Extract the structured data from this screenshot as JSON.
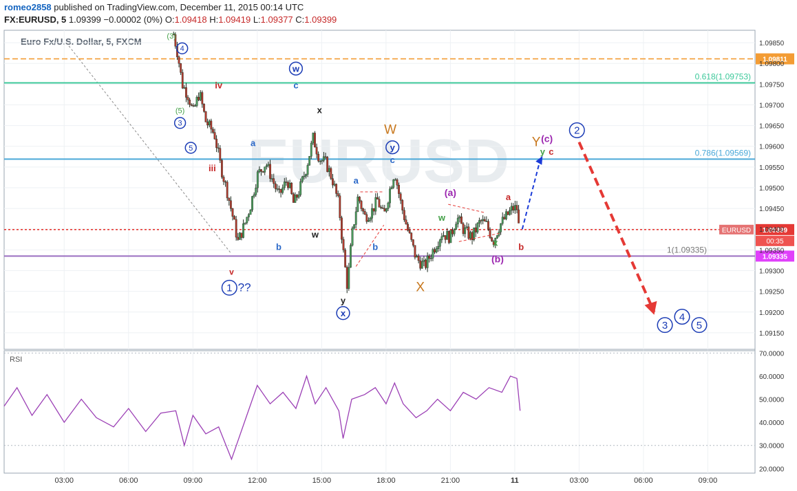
{
  "header": {
    "user": "romeo2858",
    "published": "published on TradingView.com, December 11, 2015 00:14 UTC",
    "symbol": "FX:EURUSD, 5",
    "last": "1.09399",
    "change": "−0.00002 (0%)",
    "o_label": "O:",
    "o": "1.09418",
    "h_label": "H:",
    "h": "1.09419",
    "l_label": "L:",
    "l": "1.09377",
    "c_label": "C:",
    "c": "1.09399"
  },
  "colors": {
    "up": "#4a9a5c",
    "down": "#b23a2e",
    "bg": "#ffffff",
    "rsi": "#9b3fb5",
    "orange": "#f39c34",
    "teal": "#3cc89a",
    "lightblue": "#4aa8d8",
    "purple": "#9a6ec0",
    "red": "#e53935",
    "blue": "#1a3bb5"
  },
  "chart_data": {
    "type": "candlestick",
    "title": "Euro Fx/U.S. Dollar, 5, FXCM",
    "ylim": [
      1.0911,
      1.0988
    ],
    "y_ticks": [
      "1.09850",
      "1.09800",
      "1.09750",
      "1.09700",
      "1.09650",
      "1.09600",
      "1.09550",
      "1.09500",
      "1.09450",
      "1.09400",
      "1.09350",
      "1.09300",
      "1.09250",
      "1.09200",
      "1.09150"
    ],
    "y_tick_values": [
      1.0985,
      1.098,
      1.0975,
      1.097,
      1.0965,
      1.096,
      1.0955,
      1.095,
      1.0945,
      1.094,
      1.0935,
      1.093,
      1.0925,
      1.092,
      1.0915
    ],
    "x_ticks": [
      "03:00",
      "06:00",
      "09:00",
      "12:00",
      "15:00",
      "18:00",
      "21:00",
      "11",
      "03:00",
      "06:00",
      "09:00"
    ],
    "x_tick_hours": [
      3,
      6,
      9,
      12,
      15,
      18,
      21,
      24,
      27,
      30,
      33
    ],
    "xlim_hours": [
      0.2,
      35.2
    ],
    "path": [
      [
        8.1,
        1.0987
      ],
      [
        8.3,
        1.0982
      ],
      [
        8.5,
        1.0975
      ],
      [
        8.8,
        1.0972
      ],
      [
        9.0,
        1.0968
      ],
      [
        9.3,
        1.0973
      ],
      [
        9.6,
        1.0966
      ],
      [
        10.0,
        1.0963
      ],
      [
        10.3,
        1.0955
      ],
      [
        10.6,
        1.0949
      ],
      [
        10.9,
        1.0942
      ],
      [
        11.1,
        1.0937
      ],
      [
        11.4,
        1.0941
      ],
      [
        11.7,
        1.0946
      ],
      [
        12.0,
        1.0953
      ],
      [
        12.4,
        1.0956
      ],
      [
        12.7,
        1.0952
      ],
      [
        13.0,
        1.0948
      ],
      [
        13.4,
        1.0952
      ],
      [
        13.7,
        1.0946
      ],
      [
        14.0,
        1.095
      ],
      [
        14.3,
        1.0955
      ],
      [
        14.6,
        1.0962
      ],
      [
        14.9,
        1.0957
      ],
      [
        15.2,
        1.0956
      ],
      [
        15.5,
        1.0952
      ],
      [
        15.8,
        1.0946
      ],
      [
        16.0,
        1.0935
      ],
      [
        16.2,
        1.0926
      ],
      [
        16.4,
        1.0938
      ],
      [
        16.7,
        1.0948
      ],
      [
        17.0,
        1.0943
      ],
      [
        17.3,
        1.0944
      ],
      [
        17.6,
        1.0947
      ],
      [
        17.9,
        1.0943
      ],
      [
        18.2,
        1.095
      ],
      [
        18.4,
        1.0954
      ],
      [
        18.7,
        1.0946
      ],
      [
        19.0,
        1.094
      ],
      [
        19.4,
        1.0933
      ],
      [
        19.8,
        1.0931
      ],
      [
        20.2,
        1.0935
      ],
      [
        20.6,
        1.0939
      ],
      [
        21.0,
        1.0938
      ],
      [
        21.3,
        1.0943
      ],
      [
        21.6,
        1.094
      ],
      [
        22.0,
        1.0938
      ],
      [
        22.4,
        1.0942
      ],
      [
        22.7,
        1.0941
      ],
      [
        23.0,
        1.0937
      ],
      [
        23.3,
        1.0941
      ],
      [
        23.6,
        1.0943
      ],
      [
        23.9,
        1.0945
      ],
      [
        24.1,
        1.0945
      ],
      [
        24.2,
        1.094
      ],
      [
        24.25,
        1.09399
      ]
    ],
    "horizontal_lines": [
      {
        "value": 1.09811,
        "label": "1.09811",
        "style": "dashed",
        "color": "#f39c34"
      },
      {
        "value": 1.09753,
        "label": "0.618(1.09753)",
        "style": "solid",
        "color": "#3cc89a"
      },
      {
        "value": 1.09569,
        "label": "0.786(1.09569)",
        "style": "solid",
        "color": "#4aa8d8"
      },
      {
        "value": 1.09399,
        "label": "EURUSD",
        "price_tag": "1.09399",
        "countdown": "00:35",
        "style": "dotted",
        "color": "#e53935"
      },
      {
        "value": 1.09335,
        "label": "1(1.09335)",
        "price_tag": "1.09335",
        "style": "solid",
        "color": "#9a6ec0"
      }
    ],
    "projection": {
      "up": [
        [
          24.35,
          1.094
        ],
        [
          25.2,
          1.0957
        ]
      ],
      "down": [
        [
          27.0,
          1.0961
        ],
        [
          30.5,
          1.092
        ]
      ]
    },
    "annotations": [
      {
        "text": "(3)",
        "x": 8.0,
        "y": 1.0986,
        "color": "#43a047",
        "size": 11
      },
      {
        "text": "4",
        "x": 8.5,
        "y": 1.0983,
        "color": "#1a3bb5",
        "size": 11,
        "circled": true
      },
      {
        "text": "(5)",
        "x": 8.4,
        "y": 1.0968,
        "color": "#43a047",
        "size": 11
      },
      {
        "text": "3",
        "x": 8.4,
        "y": 1.0965,
        "color": "#1a3bb5",
        "size": 11,
        "circled": true
      },
      {
        "text": "5",
        "x": 8.9,
        "y": 1.0959,
        "color": "#1a3bb5",
        "size": 11,
        "circled": true
      },
      {
        "text": "iv",
        "x": 10.2,
        "y": 1.0974,
        "color": "#c62828",
        "size": 13,
        "bold": true
      },
      {
        "text": "iii",
        "x": 9.9,
        "y": 1.0954,
        "color": "#c62828",
        "size": 13,
        "bold": true
      },
      {
        "text": "v",
        "x": 10.8,
        "y": 1.0929,
        "color": "#c62828",
        "size": 12,
        "bold": true
      },
      {
        "text": "1",
        "x": 10.7,
        "y": 1.0925,
        "color": "#1a3bb5",
        "size": 15,
        "circled": true
      },
      {
        "text": "??",
        "x": 11.4,
        "y": 1.0925,
        "color": "#1a3bb5",
        "size": 17
      },
      {
        "text": "a",
        "x": 11.8,
        "y": 1.096,
        "color": "#2a68c8",
        "size": 13,
        "bold": true
      },
      {
        "text": "b",
        "x": 13.0,
        "y": 1.0935,
        "color": "#2a68c8",
        "size": 13,
        "bold": true
      },
      {
        "text": "w",
        "x": 13.8,
        "y": 1.0978,
        "color": "#1a3bb5",
        "size": 13,
        "bold": true,
        "circled": true
      },
      {
        "text": "c",
        "x": 13.8,
        "y": 1.0974,
        "color": "#2a68c8",
        "size": 13,
        "bold": true
      },
      {
        "text": "x",
        "x": 14.9,
        "y": 1.0968,
        "color": "#222222",
        "size": 13,
        "bold": true
      },
      {
        "text": "w",
        "x": 14.7,
        "y": 1.0938,
        "color": "#222222",
        "size": 13,
        "bold": true
      },
      {
        "text": "a",
        "x": 16.6,
        "y": 1.0951,
        "color": "#2a68c8",
        "size": 13,
        "bold": true
      },
      {
        "text": "b",
        "x": 17.5,
        "y": 1.0935,
        "color": "#2a68c8",
        "size": 13,
        "bold": true
      },
      {
        "text": "y",
        "x": 16.0,
        "y": 1.0922,
        "color": "#222222",
        "size": 13,
        "bold": true
      },
      {
        "text": "x",
        "x": 16.0,
        "y": 1.0919,
        "color": "#1a3bb5",
        "size": 13,
        "bold": true,
        "circled": true
      },
      {
        "text": "W",
        "x": 18.2,
        "y": 1.0963,
        "color": "#c8781e",
        "size": 19
      },
      {
        "text": "y",
        "x": 18.3,
        "y": 1.0959,
        "color": "#1a3bb5",
        "size": 13,
        "bold": true,
        "circled": true
      },
      {
        "text": "c",
        "x": 18.3,
        "y": 1.0956,
        "color": "#2a68c8",
        "size": 13,
        "bold": true
      },
      {
        "text": "X",
        "x": 19.6,
        "y": 1.0925,
        "color": "#c8781e",
        "size": 19
      },
      {
        "text": "(a)",
        "x": 21.0,
        "y": 1.0948,
        "color": "#9c27b0",
        "size": 14,
        "bold": true
      },
      {
        "text": "w",
        "x": 20.6,
        "y": 1.0942,
        "color": "#43a047",
        "size": 13,
        "bold": true
      },
      {
        "text": "x",
        "x": 23.1,
        "y": 1.0936,
        "color": "#43a047",
        "size": 13,
        "bold": true
      },
      {
        "text": "(b)",
        "x": 23.2,
        "y": 1.0932,
        "color": "#9c27b0",
        "size": 14,
        "bold": true
      },
      {
        "text": "a",
        "x": 23.7,
        "y": 1.0947,
        "color": "#c62828",
        "size": 13,
        "bold": true
      },
      {
        "text": "b",
        "x": 24.3,
        "y": 1.0935,
        "color": "#c62828",
        "size": 13,
        "bold": true
      },
      {
        "text": "Y",
        "x": 25.0,
        "y": 1.096,
        "color": "#c8781e",
        "size": 19
      },
      {
        "text": "y",
        "x": 25.3,
        "y": 1.0958,
        "color": "#43a047",
        "size": 13,
        "bold": true
      },
      {
        "text": "(c)",
        "x": 25.5,
        "y": 1.0961,
        "color": "#9c27b0",
        "size": 14,
        "bold": true
      },
      {
        "text": "c",
        "x": 25.7,
        "y": 1.0958,
        "color": "#c62828",
        "size": 13,
        "bold": true
      },
      {
        "text": "2",
        "x": 26.9,
        "y": 1.0963,
        "color": "#1a3bb5",
        "size": 15,
        "circled": true
      },
      {
        "text": "3",
        "x": 31.0,
        "y": 1.0916,
        "color": "#1a3bb5",
        "size": 15,
        "circled": true
      },
      {
        "text": "4",
        "x": 31.8,
        "y": 1.0918,
        "color": "#1a3bb5",
        "size": 15,
        "circled": true
      },
      {
        "text": "5",
        "x": 32.6,
        "y": 1.0916,
        "color": "#1a3bb5",
        "size": 15,
        "circled": true
      }
    ],
    "watermark": "EURUSD",
    "rsi": {
      "label": "RSI",
      "ylim": [
        18,
        71
      ],
      "y_ticks": [
        "70.0000",
        "60.0000",
        "50.0000",
        "40.0000",
        "30.0000",
        "20.0000"
      ],
      "y_tick_values": [
        70,
        60,
        50,
        40,
        30,
        20
      ],
      "guides": [
        70,
        30
      ],
      "path": [
        [
          0.2,
          47
        ],
        [
          0.8,
          55
        ],
        [
          1.5,
          43
        ],
        [
          2.2,
          52
        ],
        [
          3.0,
          40
        ],
        [
          3.8,
          50
        ],
        [
          4.5,
          42
        ],
        [
          5.3,
          38
        ],
        [
          6.0,
          46
        ],
        [
          6.8,
          36
        ],
        [
          7.5,
          44
        ],
        [
          8.2,
          45
        ],
        [
          8.6,
          30
        ],
        [
          9.0,
          43
        ],
        [
          9.6,
          35
        ],
        [
          10.2,
          38
        ],
        [
          10.8,
          24
        ],
        [
          11.4,
          40
        ],
        [
          12.0,
          56
        ],
        [
          12.6,
          48
        ],
        [
          13.2,
          53
        ],
        [
          13.8,
          46
        ],
        [
          14.3,
          60
        ],
        [
          14.7,
          48
        ],
        [
          15.2,
          55
        ],
        [
          15.8,
          45
        ],
        [
          16.0,
          33
        ],
        [
          16.4,
          50
        ],
        [
          17.0,
          52
        ],
        [
          17.5,
          55
        ],
        [
          18.0,
          48
        ],
        [
          18.4,
          57
        ],
        [
          18.8,
          48
        ],
        [
          19.4,
          42
        ],
        [
          19.9,
          45
        ],
        [
          20.4,
          50
        ],
        [
          21.0,
          45
        ],
        [
          21.6,
          53
        ],
        [
          22.2,
          50
        ],
        [
          22.8,
          55
        ],
        [
          23.4,
          53
        ],
        [
          23.8,
          60
        ],
        [
          24.1,
          59
        ],
        [
          24.25,
          45
        ]
      ]
    }
  }
}
